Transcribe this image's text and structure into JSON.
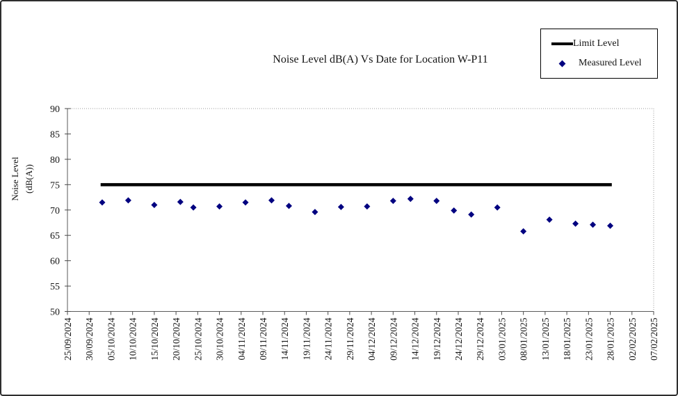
{
  "chart_data": {
    "type": "scatter",
    "title": "Noise Level dB(A) Vs Date for Location W-P11",
    "ylabel_lines": [
      "Noise Level",
      "(dB(A))"
    ],
    "xlabel": "",
    "ylim": [
      50,
      90
    ],
    "y_ticks": [
      50,
      55,
      60,
      65,
      70,
      75,
      80,
      85,
      90
    ],
    "grid": false,
    "x_axis_start": "25/09/2024",
    "x_axis_end": "07/02/2025",
    "x_tick_interval_days": 5,
    "x_tick_labels": [
      "25/09/2024",
      "30/09/2024",
      "05/10/2024",
      "10/10/2024",
      "15/10/2024",
      "20/10/2024",
      "25/10/2024",
      "30/10/2024",
      "04/11/2024",
      "09/11/2024",
      "14/11/2024",
      "19/11/2024",
      "24/11/2024",
      "29/11/2024",
      "04/12/2024",
      "09/12/2024",
      "14/12/2024",
      "19/12/2024",
      "24/12/2024",
      "29/12/2024",
      "03/01/2025",
      "08/01/2025",
      "13/01/2025",
      "18/01/2025",
      "23/01/2025",
      "28/01/2025",
      "02/02/2025",
      "07/02/2025"
    ],
    "legend": {
      "position": "top-right",
      "items": [
        {
          "label": "Limit Level",
          "marker": "line",
          "color": "#000000"
        },
        {
          "label": "Measured Level",
          "marker": "diamond",
          "color": "#000080"
        }
      ]
    },
    "series": [
      {
        "name": "Limit Level",
        "type": "line",
        "color": "#000000",
        "line_width": 4.5,
        "points": [
          {
            "date": "03/10/2024",
            "value": 75
          },
          {
            "date": "28/01/2025",
            "value": 75
          }
        ]
      },
      {
        "name": "Measured Level",
        "type": "scatter",
        "marker": "diamond",
        "color": "#000080",
        "points": [
          {
            "date": "03/10/2024",
            "value": 71.5
          },
          {
            "date": "09/10/2024",
            "value": 71.9
          },
          {
            "date": "15/10/2024",
            "value": 71.0
          },
          {
            "date": "21/10/2024",
            "value": 71.6
          },
          {
            "date": "24/10/2024",
            "value": 70.5
          },
          {
            "date": "30/10/2024",
            "value": 70.7
          },
          {
            "date": "05/11/2024",
            "value": 71.5
          },
          {
            "date": "11/11/2024",
            "value": 71.9
          },
          {
            "date": "15/11/2024",
            "value": 70.8
          },
          {
            "date": "21/11/2024",
            "value": 69.6
          },
          {
            "date": "27/11/2024",
            "value": 70.6
          },
          {
            "date": "03/12/2024",
            "value": 70.7
          },
          {
            "date": "09/12/2024",
            "value": 71.8
          },
          {
            "date": "13/12/2024",
            "value": 72.2
          },
          {
            "date": "19/12/2024",
            "value": 71.8
          },
          {
            "date": "23/12/2024",
            "value": 69.9
          },
          {
            "date": "27/12/2024",
            "value": 69.1
          },
          {
            "date": "02/01/2025",
            "value": 70.5
          },
          {
            "date": "08/01/2025",
            "value": 65.8
          },
          {
            "date": "14/01/2025",
            "value": 68.1
          },
          {
            "date": "20/01/2025",
            "value": 67.3
          },
          {
            "date": "24/01/2025",
            "value": 67.1
          },
          {
            "date": "28/01/2025",
            "value": 66.9
          }
        ]
      }
    ]
  }
}
